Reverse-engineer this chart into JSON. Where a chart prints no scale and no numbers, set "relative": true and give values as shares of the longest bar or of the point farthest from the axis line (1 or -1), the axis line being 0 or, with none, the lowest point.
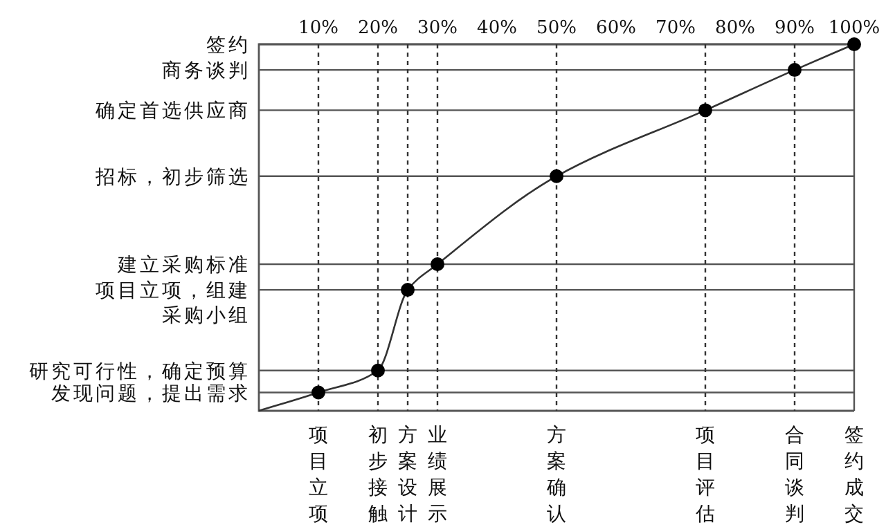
{
  "chart_data": {
    "type": "line",
    "relative": true,
    "xlim": [
      0,
      100
    ],
    "xticks": [
      {
        "value": 10,
        "label": "10%"
      },
      {
        "value": 20,
        "label": "20%"
      },
      {
        "value": 30,
        "label": "30%"
      },
      {
        "value": 40,
        "label": "40%"
      },
      {
        "value": 50,
        "label": "50%"
      },
      {
        "value": 60,
        "label": "60%"
      },
      {
        "value": 70,
        "label": "70%"
      },
      {
        "value": 80,
        "label": "80%"
      },
      {
        "value": 90,
        "label": "90%"
      },
      {
        "value": 100,
        "label": "100%"
      }
    ],
    "series": [
      {
        "color": "#333333",
        "marker": "none",
        "x": [
          0,
          10,
          20,
          25,
          30,
          50,
          75,
          90,
          100
        ],
        "values": [
          0,
          0.05,
          0.11,
          0.33,
          0.4,
          0.64,
          0.82,
          0.93,
          1
        ]
      },
      {
        "type": "scatter",
        "color": "#000000",
        "marker": "circle",
        "x": [
          10,
          20,
          25,
          30,
          50,
          75,
          90,
          100
        ],
        "values": [
          0.05,
          0.11,
          0.33,
          0.4,
          0.64,
          0.82,
          0.93,
          1
        ]
      }
    ],
    "ref_lines": [
      {
        "axis": "y",
        "value": 1,
        "label": "签约",
        "color": "#555555",
        "line_style": "solid"
      },
      {
        "axis": "y",
        "value": 0.93,
        "label": "商务谈判",
        "color": "#555555",
        "line_style": "solid"
      },
      {
        "axis": "y",
        "value": 0.82,
        "label": "确定首选供应商",
        "color": "#555555",
        "line_style": "solid"
      },
      {
        "axis": "y",
        "value": 0.64,
        "label": "招标，初步筛选",
        "color": "#555555",
        "line_style": "solid"
      },
      {
        "axis": "y",
        "value": 0.4,
        "label": "建立采购标准",
        "color": "#555555",
        "line_style": "solid"
      },
      {
        "axis": "y",
        "value": 0.33,
        "label": "项目立项，组建采购小组",
        "color": "#555555",
        "line_style": "solid"
      },
      {
        "axis": "y",
        "value": 0.11,
        "label": "研究可行性，确定预算",
        "color": "#555555",
        "line_style": "solid"
      },
      {
        "axis": "y",
        "value": 0.05,
        "label": "发现问题，提出需求",
        "color": "#555555",
        "line_style": "solid"
      },
      {
        "axis": "x",
        "value": 10,
        "label": "项目立项",
        "color": "#333333",
        "line_style": "dashed"
      },
      {
        "axis": "x",
        "value": 20,
        "label": "初步接触",
        "color": "#333333",
        "line_style": "dashed"
      },
      {
        "axis": "x",
        "value": 25,
        "label": "方案设计",
        "color": "#333333",
        "line_style": "dashed"
      },
      {
        "axis": "x",
        "value": 30,
        "label": "业绩展示",
        "color": "#333333",
        "line_style": "dashed"
      },
      {
        "axis": "x",
        "value": 50,
        "label": "方案确认",
        "color": "#333333",
        "line_style": "dashed"
      },
      {
        "axis": "x",
        "value": 75,
        "label": "项目评估",
        "color": "#333333",
        "line_style": "dashed"
      },
      {
        "axis": "x",
        "value": 90,
        "label": "合同谈判",
        "color": "#333333",
        "line_style": "dashed"
      },
      {
        "axis": "x",
        "value": 100,
        "label": "签约成交",
        "color": "#555555",
        "line_style": "solid"
      }
    ]
  }
}
